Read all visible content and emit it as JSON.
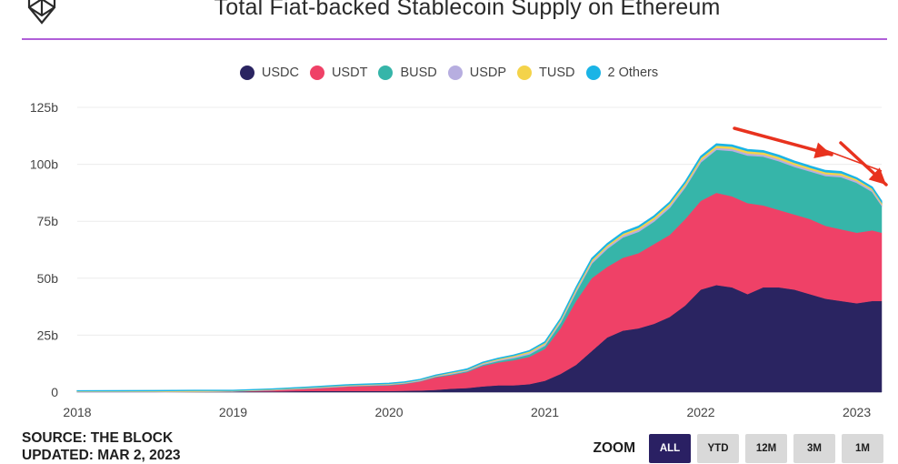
{
  "header": {
    "logo_icon": "the-block-cube-logo",
    "title": "Total Fiat-backed Stablecoin Supply on Ethereum",
    "accent_color": "#b05fd8"
  },
  "footer": {
    "source": "SOURCE: THE BLOCK",
    "updated": "UPDATED: MAR 2, 2023"
  },
  "zoom": {
    "label": "ZOOM",
    "buttons": [
      {
        "label": "ALL",
        "active": true
      },
      {
        "label": "YTD",
        "active": false
      },
      {
        "label": "12M",
        "active": false
      },
      {
        "label": "3M",
        "active": false
      },
      {
        "label": "1M",
        "active": false
      }
    ]
  },
  "annotations": {
    "arrows": [
      {
        "description": "red arrow pointing down-right along declining total supply",
        "color": "#e8321e"
      },
      {
        "description": "red arrow pointing down-right toward latest value",
        "color": "#e8321e"
      }
    ]
  },
  "chart_data": {
    "type": "area",
    "stacked": true,
    "title": "Total Fiat-backed Stablecoin Supply on Ethereum",
    "xlabel": "",
    "ylabel": "",
    "x_ticks": [
      "2018",
      "2019",
      "2020",
      "2021",
      "2022",
      "2023"
    ],
    "y_ticks": [
      "0",
      "25b",
      "50b",
      "75b",
      "100b",
      "125b"
    ],
    "ylim": [
      0,
      125
    ],
    "xlim": [
      2018.0,
      2023.16
    ],
    "y_unit": "billion USD",
    "grid": true,
    "legend_position": "top-center",
    "x": [
      2018.0,
      2018.5,
      2018.75,
      2019.0,
      2019.25,
      2019.5,
      2019.75,
      2020.0,
      2020.1,
      2020.2,
      2020.3,
      2020.4,
      2020.5,
      2020.6,
      2020.7,
      2020.8,
      2020.9,
      2021.0,
      2021.1,
      2021.2,
      2021.3,
      2021.4,
      2021.5,
      2021.6,
      2021.7,
      2021.8,
      2021.9,
      2022.0,
      2022.1,
      2022.2,
      2022.3,
      2022.4,
      2022.5,
      2022.6,
      2022.7,
      2022.8,
      2022.9,
      2023.0,
      2023.1,
      2023.16
    ],
    "series": [
      {
        "name": "USDC",
        "color": "#2a2461",
        "values": [
          0,
          0,
          0.2,
          0.3,
          0.3,
          0.5,
          0.5,
          0.5,
          0.6,
          0.7,
          1.0,
          1.5,
          1.8,
          2.5,
          3.0,
          3.0,
          3.5,
          5,
          8,
          12,
          18,
          24,
          27,
          28,
          30,
          33,
          38,
          45,
          47,
          46,
          43,
          46,
          46,
          45,
          43,
          41,
          40,
          39,
          40,
          40
        ]
      },
      {
        "name": "USDT",
        "color": "#ef4167",
        "values": [
          0,
          0,
          0,
          0,
          0.5,
          1.0,
          2.0,
          2.5,
          3.0,
          4.0,
          5.5,
          6.0,
          7.0,
          9.0,
          10.0,
          11.0,
          12.0,
          14.0,
          20.0,
          28.0,
          32.0,
          31.0,
          32.0,
          33.0,
          35.0,
          36.0,
          38.0,
          39.0,
          40.5,
          40.0,
          40.0,
          36.0,
          34.0,
          33.0,
          33.0,
          32.0,
          31.5,
          31.0,
          31.0,
          30.0
        ]
      },
      {
        "name": "BUSD",
        "color": "#36b5a9",
        "values": [
          0,
          0,
          0,
          0,
          0.1,
          0.2,
          0.2,
          0.3,
          0.3,
          0.3,
          0.4,
          0.5,
          0.5,
          0.6,
          0.8,
          1.0,
          1.2,
          1.5,
          2.5,
          4.0,
          6.5,
          8.0,
          9.0,
          9.5,
          10.0,
          12.0,
          14.0,
          17.0,
          19.0,
          20.0,
          21.0,
          21.5,
          21.5,
          21.0,
          21.0,
          22.0,
          23.0,
          22.0,
          17.0,
          12.0
        ]
      },
      {
        "name": "USDP",
        "color": "#b7aee0",
        "values": [
          0.3,
          0.3,
          0.2,
          0.2,
          0.2,
          0.3,
          0.3,
          0.3,
          0.3,
          0.3,
          0.3,
          0.4,
          0.4,
          0.5,
          0.5,
          0.6,
          0.7,
          0.7,
          0.8,
          0.9,
          0.9,
          0.9,
          0.9,
          0.9,
          0.9,
          0.9,
          0.9,
          0.9,
          0.9,
          0.9,
          0.9,
          0.9,
          0.9,
          0.9,
          0.8,
          0.8,
          0.8,
          0.8,
          0.8,
          0.7
        ]
      },
      {
        "name": "TUSD",
        "color": "#f4d34a",
        "values": [
          0.2,
          0.3,
          0.3,
          0.2,
          0.2,
          0.2,
          0.2,
          0.2,
          0.2,
          0.2,
          0.2,
          0.3,
          0.3,
          0.3,
          0.4,
          0.5,
          0.6,
          0.6,
          0.7,
          0.8,
          0.8,
          0.8,
          0.8,
          0.9,
          1.0,
          1.0,
          1.0,
          1.0,
          1.0,
          1.0,
          1.0,
          1.0,
          1.0,
          0.9,
          0.9,
          0.9,
          0.9,
          0.8,
          0.7,
          0.7
        ]
      },
      {
        "name": "2 Others",
        "color": "#1ab4e6",
        "values": [
          0.1,
          0.1,
          0.1,
          0.1,
          0.1,
          0.1,
          0.1,
          0.1,
          0.1,
          0.1,
          0.1,
          0.1,
          0.2,
          0.2,
          0.2,
          0.2,
          0.2,
          0.3,
          0.3,
          0.4,
          0.5,
          0.5,
          0.5,
          0.5,
          0.5,
          0.5,
          0.5,
          0.6,
          0.6,
          0.6,
          0.6,
          0.6,
          0.6,
          0.6,
          0.6,
          0.6,
          0.6,
          0.5,
          0.5,
          0.5
        ]
      }
    ]
  }
}
